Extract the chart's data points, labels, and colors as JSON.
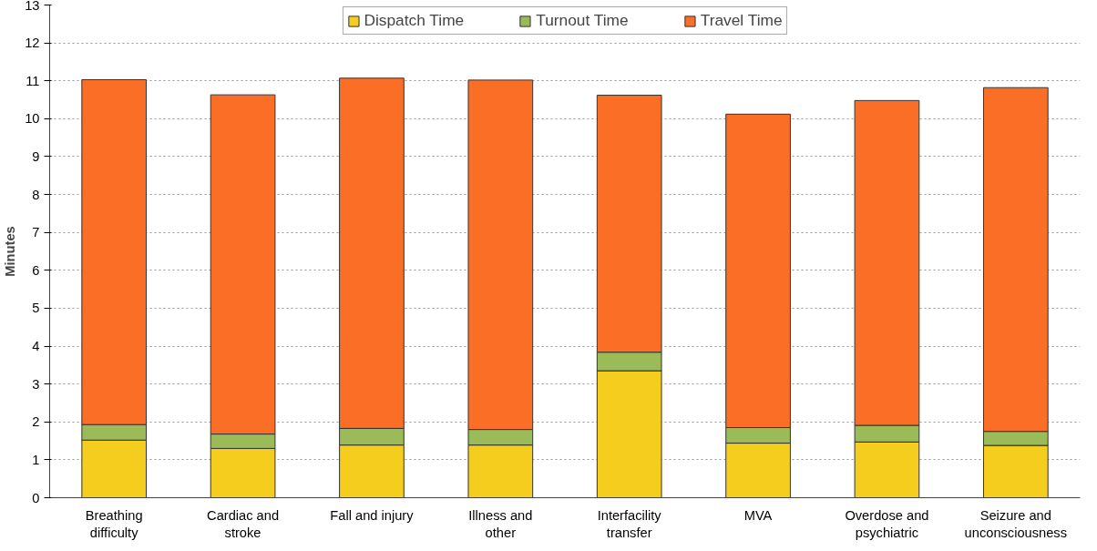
{
  "chart_data": {
    "type": "bar",
    "stacked": true,
    "ylabel": "Minutes",
    "categories": [
      "Breathing difficulty",
      "Cardiac and stroke",
      "Fall and injury",
      "Illness and other",
      "Interfacility transfer",
      "MVA",
      "Overdose and psychiatric",
      "Seizure and unconsciousness"
    ],
    "series": [
      {
        "name": "Dispatch Time",
        "color": "#f5cd1e",
        "values": [
          1.52,
          1.3,
          1.39,
          1.39,
          3.35,
          1.44,
          1.47,
          1.38
        ]
      },
      {
        "name": "Turnout Time",
        "color": "#9bbb59",
        "values": [
          0.41,
          0.38,
          0.44,
          0.41,
          0.49,
          0.41,
          0.44,
          0.37
        ]
      },
      {
        "name": "Travel Time",
        "color": "#fb6e26",
        "values": [
          9.1,
          8.95,
          9.24,
          9.22,
          6.78,
          8.27,
          8.57,
          9.07
        ]
      }
    ],
    "ylim": [
      0,
      13
    ],
    "yticks": [
      0,
      1,
      2,
      3,
      4,
      5,
      6,
      7,
      8,
      9,
      10,
      11,
      12,
      13
    ],
    "grid": "y",
    "legend": "top"
  }
}
